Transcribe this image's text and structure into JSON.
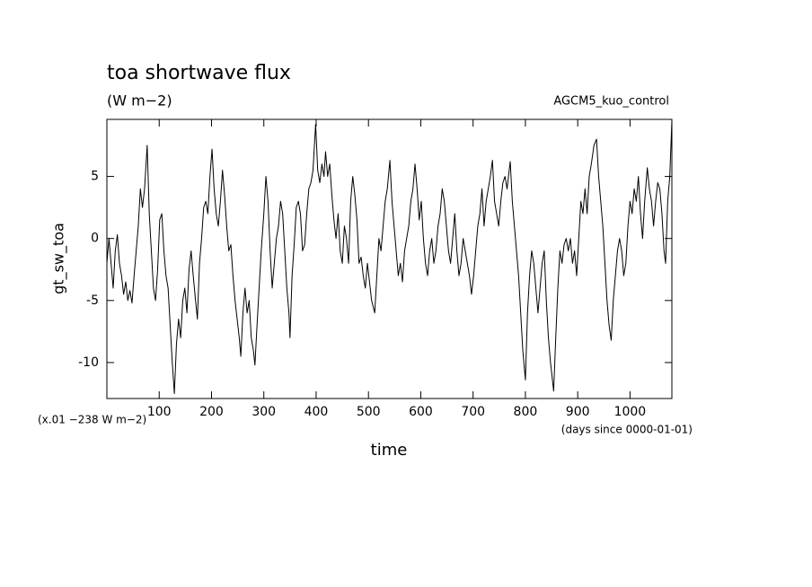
{
  "chart_data": {
    "type": "line",
    "title": "toa shortwave flux",
    "subtitle": "(W m−2)",
    "annotation": "AGCM5_kuo_control",
    "y_label": "gt_sw_toa",
    "x_label": "time",
    "y_unit_note": "(x.01 −238 W m−2)",
    "x_unit_note": "(days since 0000-01-01)",
    "xlim": [
      0,
      1080
    ],
    "ylim": [
      -12.9,
      9.6
    ],
    "xticks": [
      100,
      200,
      300,
      400,
      500,
      600,
      700,
      800,
      900,
      1000
    ],
    "yticks": [
      -10,
      -5,
      0,
      5
    ],
    "x": [
      0,
      4,
      8,
      12,
      16,
      20,
      24,
      28,
      32,
      36,
      40,
      44,
      48,
      52,
      56,
      60,
      64,
      68,
      72,
      77,
      81,
      85,
      89,
      93,
      97,
      101,
      105,
      109,
      113,
      117,
      121,
      125,
      129,
      133,
      137,
      141,
      145,
      149,
      153,
      157,
      161,
      165,
      169,
      173,
      177,
      181,
      185,
      189,
      193,
      197,
      201,
      205,
      209,
      213,
      217,
      221,
      225,
      229,
      233,
      237,
      241,
      245,
      249,
      253,
      256,
      260,
      264,
      268,
      272,
      276,
      280,
      283,
      287,
      291,
      295,
      300,
      304,
      308,
      312,
      316,
      320,
      324,
      328,
      332,
      336,
      340,
      344,
      348,
      350,
      354,
      358,
      362,
      366,
      370,
      374,
      378,
      382,
      386,
      390,
      394,
      399,
      403,
      407,
      411,
      415,
      418,
      422,
      426,
      430,
      434,
      438,
      442,
      446,
      450,
      454,
      458,
      462,
      466,
      470,
      474,
      478,
      482,
      486,
      490,
      494,
      498,
      502,
      506,
      512,
      516,
      520,
      524,
      528,
      532,
      536,
      541,
      545,
      549,
      553,
      557,
      561,
      565,
      569,
      573,
      577,
      581,
      585,
      589,
      593,
      597,
      601,
      605,
      609,
      613,
      617,
      621,
      625,
      629,
      633,
      637,
      641,
      645,
      649,
      653,
      657,
      661,
      665,
      669,
      673,
      677,
      681,
      685,
      689,
      693,
      697,
      701,
      705,
      709,
      713,
      717,
      721,
      725,
      729,
      733,
      737,
      741,
      745,
      749,
      753,
      757,
      761,
      765,
      769,
      771,
      775,
      779,
      783,
      787,
      791,
      795,
      800,
      804,
      808,
      812,
      816,
      820,
      824,
      828,
      832,
      836,
      840,
      844,
      848,
      854,
      858,
      862,
      866,
      870,
      874,
      878,
      882,
      886,
      890,
      894,
      898,
      902,
      906,
      910,
      914,
      918,
      922,
      926,
      931,
      936,
      940,
      944,
      948,
      952,
      956,
      960,
      964,
      968,
      972,
      976,
      980,
      984,
      988,
      992,
      996,
      1000,
      1004,
      1008,
      1012,
      1016,
      1020,
      1024,
      1028,
      1033,
      1037,
      1041,
      1045,
      1049,
      1053,
      1057,
      1061,
      1065,
      1068,
      1072,
      1076,
      1080
    ],
    "series": [
      {
        "color": "#000000",
        "values": [
          -2,
          0,
          -2,
          -4,
          -1,
          0.3,
          -2,
          -3,
          -4.5,
          -3.5,
          -5,
          -4.2,
          -5.2,
          -3,
          -1,
          1,
          4,
          2.5,
          4,
          7.5,
          2,
          -1,
          -4,
          -5,
          -2.5,
          1.5,
          2,
          -1,
          -3,
          -4,
          -7,
          -10,
          -12.5,
          -8.5,
          -6.5,
          -8,
          -5,
          -4,
          -6,
          -2.5,
          -1,
          -3,
          -4.8,
          -6.5,
          -2,
          0,
          2.5,
          3,
          2,
          5,
          7.2,
          4,
          2,
          1,
          3,
          5.5,
          3.5,
          1,
          -1,
          -0.5,
          -3,
          -5,
          -6.5,
          -8,
          -9.5,
          -6,
          -4,
          -6,
          -5,
          -8,
          -9,
          -10.2,
          -7,
          -4,
          -1,
          2,
          5,
          3,
          -1,
          -4,
          -2,
          0,
          1,
          3,
          2,
          -1,
          -4,
          -6,
          -8,
          -3,
          -0.5,
          2.5,
          3,
          2,
          -1,
          -0.5,
          2,
          4,
          4.5,
          5.5,
          9.2,
          5.5,
          4.5,
          6,
          5,
          7,
          5,
          6,
          3.5,
          1.5,
          0,
          2,
          -1,
          -2,
          1,
          0,
          -2,
          3,
          5,
          3.5,
          1.5,
          -2,
          -1.5,
          -3,
          -4,
          -2,
          -3.5,
          -5,
          -6,
          -3,
          0,
          -1,
          1,
          3,
          4,
          6.3,
          3,
          1,
          -1,
          -3,
          -2,
          -3.5,
          -1,
          0,
          1,
          3,
          4,
          6,
          4,
          1.5,
          3,
          0,
          -2,
          -3,
          -1,
          0,
          -2,
          -1,
          1,
          2,
          4,
          3,
          1,
          -1,
          -2,
          0,
          2,
          -1,
          -3,
          -2,
          0,
          -1,
          -2,
          -3,
          -4.5,
          -3,
          -1,
          1,
          2,
          4,
          1,
          3,
          4,
          5,
          6.3,
          3,
          2,
          1,
          3,
          4.5,
          5,
          4,
          5.5,
          6.2,
          3,
          1,
          -1,
          -3,
          -6,
          -9,
          -11.4,
          -6,
          -3,
          -1,
          -2,
          -4,
          -6,
          -4,
          -2,
          -1,
          -5,
          -8,
          -10,
          -12.3,
          -8,
          -4,
          -1,
          -2,
          -0.5,
          0,
          -1,
          0,
          -2,
          -1,
          -3,
          0,
          3,
          2,
          4,
          2,
          5,
          6,
          7.5,
          8,
          5,
          3,
          1,
          -2,
          -5,
          -7,
          -8.2,
          -5,
          -3,
          -1,
          0,
          -1,
          -3,
          -2,
          1,
          3,
          2,
          4,
          3,
          5,
          2,
          0,
          3,
          5.7,
          4,
          3,
          1,
          3,
          4.5,
          4,
          2,
          -1,
          -2,
          3,
          5,
          9.5
        ]
      }
    ]
  }
}
